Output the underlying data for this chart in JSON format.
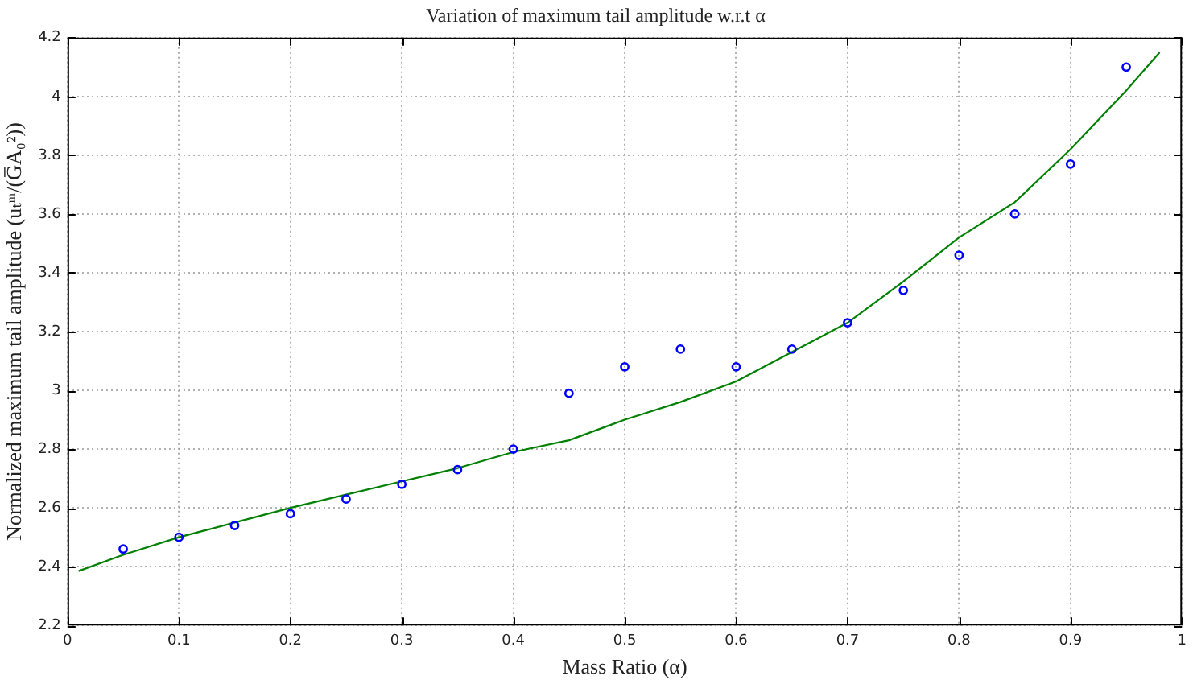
{
  "chart_data": {
    "type": "scatter",
    "title": "Variation of maximum tail amplitude w.r.t α",
    "xlabel": "Mass Ratio (α)",
    "ylabel": "Normalized maximum tail amplitude (uₜᵐ/(G̅A₀²))",
    "xlim": [
      0,
      1
    ],
    "ylim": [
      2.2,
      4.2
    ],
    "xticks": [
      0,
      0.1,
      0.2,
      0.3,
      0.4,
      0.5,
      0.6,
      0.7,
      0.8,
      0.9,
      1
    ],
    "yticks": [
      2.2,
      2.4,
      2.6,
      2.8,
      3,
      3.2,
      3.4,
      3.6,
      3.8,
      4,
      4.2
    ],
    "grid": true,
    "series": [
      {
        "marker": "circle",
        "color": "#0000ff",
        "x": [
          0.05,
          0.1,
          0.15,
          0.2,
          0.25,
          0.3,
          0.35,
          0.4,
          0.45,
          0.5,
          0.55,
          0.6,
          0.65,
          0.7,
          0.75,
          0.8,
          0.85,
          0.9,
          0.95
        ],
        "values": [
          2.46,
          2.5,
          2.54,
          2.58,
          2.63,
          2.68,
          2.73,
          2.8,
          2.99,
          3.08,
          3.14,
          3.08,
          3.14,
          3.23,
          3.34,
          3.46,
          3.6,
          3.77,
          4.1
        ]
      },
      {
        "type": "line",
        "marker": "none",
        "line_style": "solid",
        "color": "#008000",
        "x": [
          0.01,
          0.05,
          0.1,
          0.15,
          0.2,
          0.25,
          0.3,
          0.35,
          0.4,
          0.45,
          0.5,
          0.55,
          0.6,
          0.65,
          0.7,
          0.75,
          0.8,
          0.85,
          0.9,
          0.95,
          0.98
        ],
        "values": [
          2.385,
          2.44,
          2.5,
          2.55,
          2.6,
          2.645,
          2.69,
          2.735,
          2.79,
          2.83,
          2.9,
          2.96,
          3.03,
          3.13,
          3.23,
          3.37,
          3.52,
          3.64,
          3.82,
          4.02,
          4.15
        ]
      }
    ]
  }
}
